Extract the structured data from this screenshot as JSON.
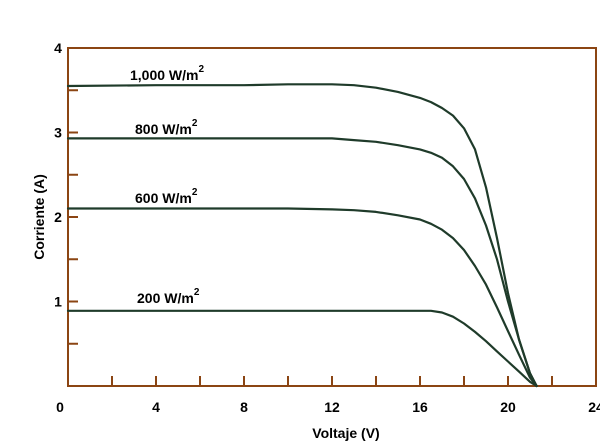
{
  "chart_data": {
    "type": "line",
    "xlabel": "Voltaje (V)",
    "ylabel": "Corriente (A)",
    "xlim": [
      0,
      24
    ],
    "ylim": [
      0,
      4
    ],
    "x_major_ticks": [
      0,
      4,
      8,
      12,
      16,
      20,
      24
    ],
    "x_minor_ticks": [
      2,
      6,
      10,
      14,
      18,
      22
    ],
    "y_major_ticks": [
      1,
      2,
      3,
      4
    ],
    "y_minor_ticks": [
      0.5,
      1.5,
      2.5,
      3.5
    ],
    "x_tick_labels": [
      "0",
      "4",
      "8",
      "12",
      "16",
      "20",
      "24"
    ],
    "y_tick_labels": [
      "1",
      "2",
      "3",
      "4"
    ],
    "grid": false,
    "colors": {
      "axes": "#8b4513",
      "lines": "#1f3b2a",
      "text": "#000000"
    },
    "series": [
      {
        "label_base": "1,000 W/m",
        "label_sup": "2",
        "x": [
          0,
          4,
          8,
          10,
          12,
          13,
          14,
          15,
          16,
          16.5,
          17,
          17.5,
          18,
          18.5,
          19,
          19.5,
          20,
          20.5,
          21,
          21.3
        ],
        "y": [
          3.55,
          3.56,
          3.56,
          3.57,
          3.57,
          3.56,
          3.53,
          3.48,
          3.41,
          3.36,
          3.29,
          3.2,
          3.05,
          2.8,
          2.35,
          1.75,
          1.1,
          0.55,
          0.15,
          0
        ]
      },
      {
        "label_base": "800 W/m",
        "label_sup": "2",
        "x": [
          0,
          4,
          8,
          10,
          12,
          13,
          14,
          15,
          16,
          16.5,
          17,
          17.5,
          18,
          18.5,
          19,
          19.5,
          20,
          20.5,
          21,
          21.3
        ],
        "y": [
          2.93,
          2.93,
          2.93,
          2.93,
          2.93,
          2.91,
          2.89,
          2.85,
          2.8,
          2.76,
          2.7,
          2.6,
          2.45,
          2.22,
          1.9,
          1.5,
          1.0,
          0.55,
          0.15,
          0
        ]
      },
      {
        "label_base": "600 W/m",
        "label_sup": "2",
        "x": [
          0,
          4,
          8,
          10,
          12,
          13,
          14,
          15,
          16,
          16.5,
          17,
          17.5,
          18,
          18.5,
          19,
          19.5,
          20,
          20.5,
          21,
          21.3
        ],
        "y": [
          2.1,
          2.1,
          2.1,
          2.1,
          2.09,
          2.08,
          2.06,
          2.02,
          1.97,
          1.92,
          1.85,
          1.75,
          1.61,
          1.42,
          1.2,
          0.93,
          0.65,
          0.37,
          0.1,
          0
        ]
      },
      {
        "label_base": "200 W/m",
        "label_sup": "2",
        "x": [
          0,
          4,
          8,
          12,
          16,
          16.5,
          17,
          17.5,
          18,
          18.5,
          19,
          19.5,
          20,
          20.5,
          21,
          21.3
        ],
        "y": [
          0.89,
          0.89,
          0.89,
          0.89,
          0.89,
          0.89,
          0.87,
          0.82,
          0.74,
          0.64,
          0.53,
          0.41,
          0.29,
          0.17,
          0.05,
          0
        ]
      }
    ]
  }
}
